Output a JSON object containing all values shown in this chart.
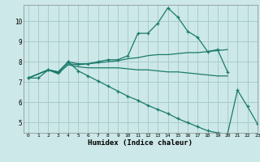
{
  "xlabel": "Humidex (Indice chaleur)",
  "ylabel": "",
  "bg_color": "#cce8e8",
  "grid_color": "#aacccc",
  "line_color": "#1a7a6a",
  "xlim": [
    -0.5,
    23
  ],
  "ylim": [
    4.5,
    10.8
  ],
  "xticks": [
    0,
    1,
    2,
    3,
    4,
    5,
    6,
    7,
    8,
    9,
    10,
    11,
    12,
    13,
    14,
    15,
    16,
    17,
    18,
    19,
    20,
    21,
    22,
    23
  ],
  "yticks": [
    5,
    6,
    7,
    8,
    9,
    10
  ],
  "series": [
    {
      "x": [
        0,
        1,
        2,
        3,
        4,
        5,
        6,
        7,
        8,
        9,
        10,
        11,
        12,
        13,
        14,
        15,
        16,
        17,
        18,
        19,
        20
      ],
      "y": [
        7.2,
        7.2,
        7.6,
        7.5,
        8.0,
        7.9,
        7.9,
        8.0,
        8.1,
        8.1,
        8.3,
        9.4,
        9.4,
        9.9,
        10.65,
        10.2,
        9.5,
        9.2,
        8.5,
        8.6,
        7.5
      ],
      "marker": "+"
    },
    {
      "x": [
        0,
        2,
        3,
        4,
        5,
        6,
        7,
        8,
        9,
        10,
        11,
        12,
        13,
        14,
        15,
        16,
        17,
        18,
        19,
        20
      ],
      "y": [
        7.2,
        7.6,
        7.4,
        7.9,
        7.85,
        7.9,
        7.95,
        8.0,
        8.05,
        8.15,
        8.2,
        8.3,
        8.35,
        8.35,
        8.4,
        8.45,
        8.45,
        8.5,
        8.55,
        8.6
      ],
      "marker": null
    },
    {
      "x": [
        0,
        2,
        3,
        4,
        5,
        6,
        7,
        8,
        9,
        10,
        11,
        12,
        13,
        14,
        15,
        16,
        17,
        18,
        19,
        20
      ],
      "y": [
        7.2,
        7.6,
        7.45,
        7.85,
        7.75,
        7.7,
        7.7,
        7.7,
        7.7,
        7.65,
        7.6,
        7.6,
        7.55,
        7.5,
        7.5,
        7.45,
        7.4,
        7.35,
        7.3,
        7.3
      ],
      "marker": null
    },
    {
      "x": [
        0,
        2,
        3,
        4,
        5,
        6,
        7,
        8,
        9,
        10,
        11,
        12,
        13,
        14,
        15,
        16,
        17,
        18,
        19,
        20,
        21,
        22,
        23
      ],
      "y": [
        7.2,
        7.6,
        7.5,
        8.0,
        7.55,
        7.3,
        7.05,
        6.8,
        6.55,
        6.3,
        6.1,
        5.85,
        5.65,
        5.45,
        5.2,
        5.0,
        4.8,
        4.6,
        4.5,
        4.45,
        6.6,
        5.8,
        4.95
      ],
      "marker": "+"
    }
  ]
}
